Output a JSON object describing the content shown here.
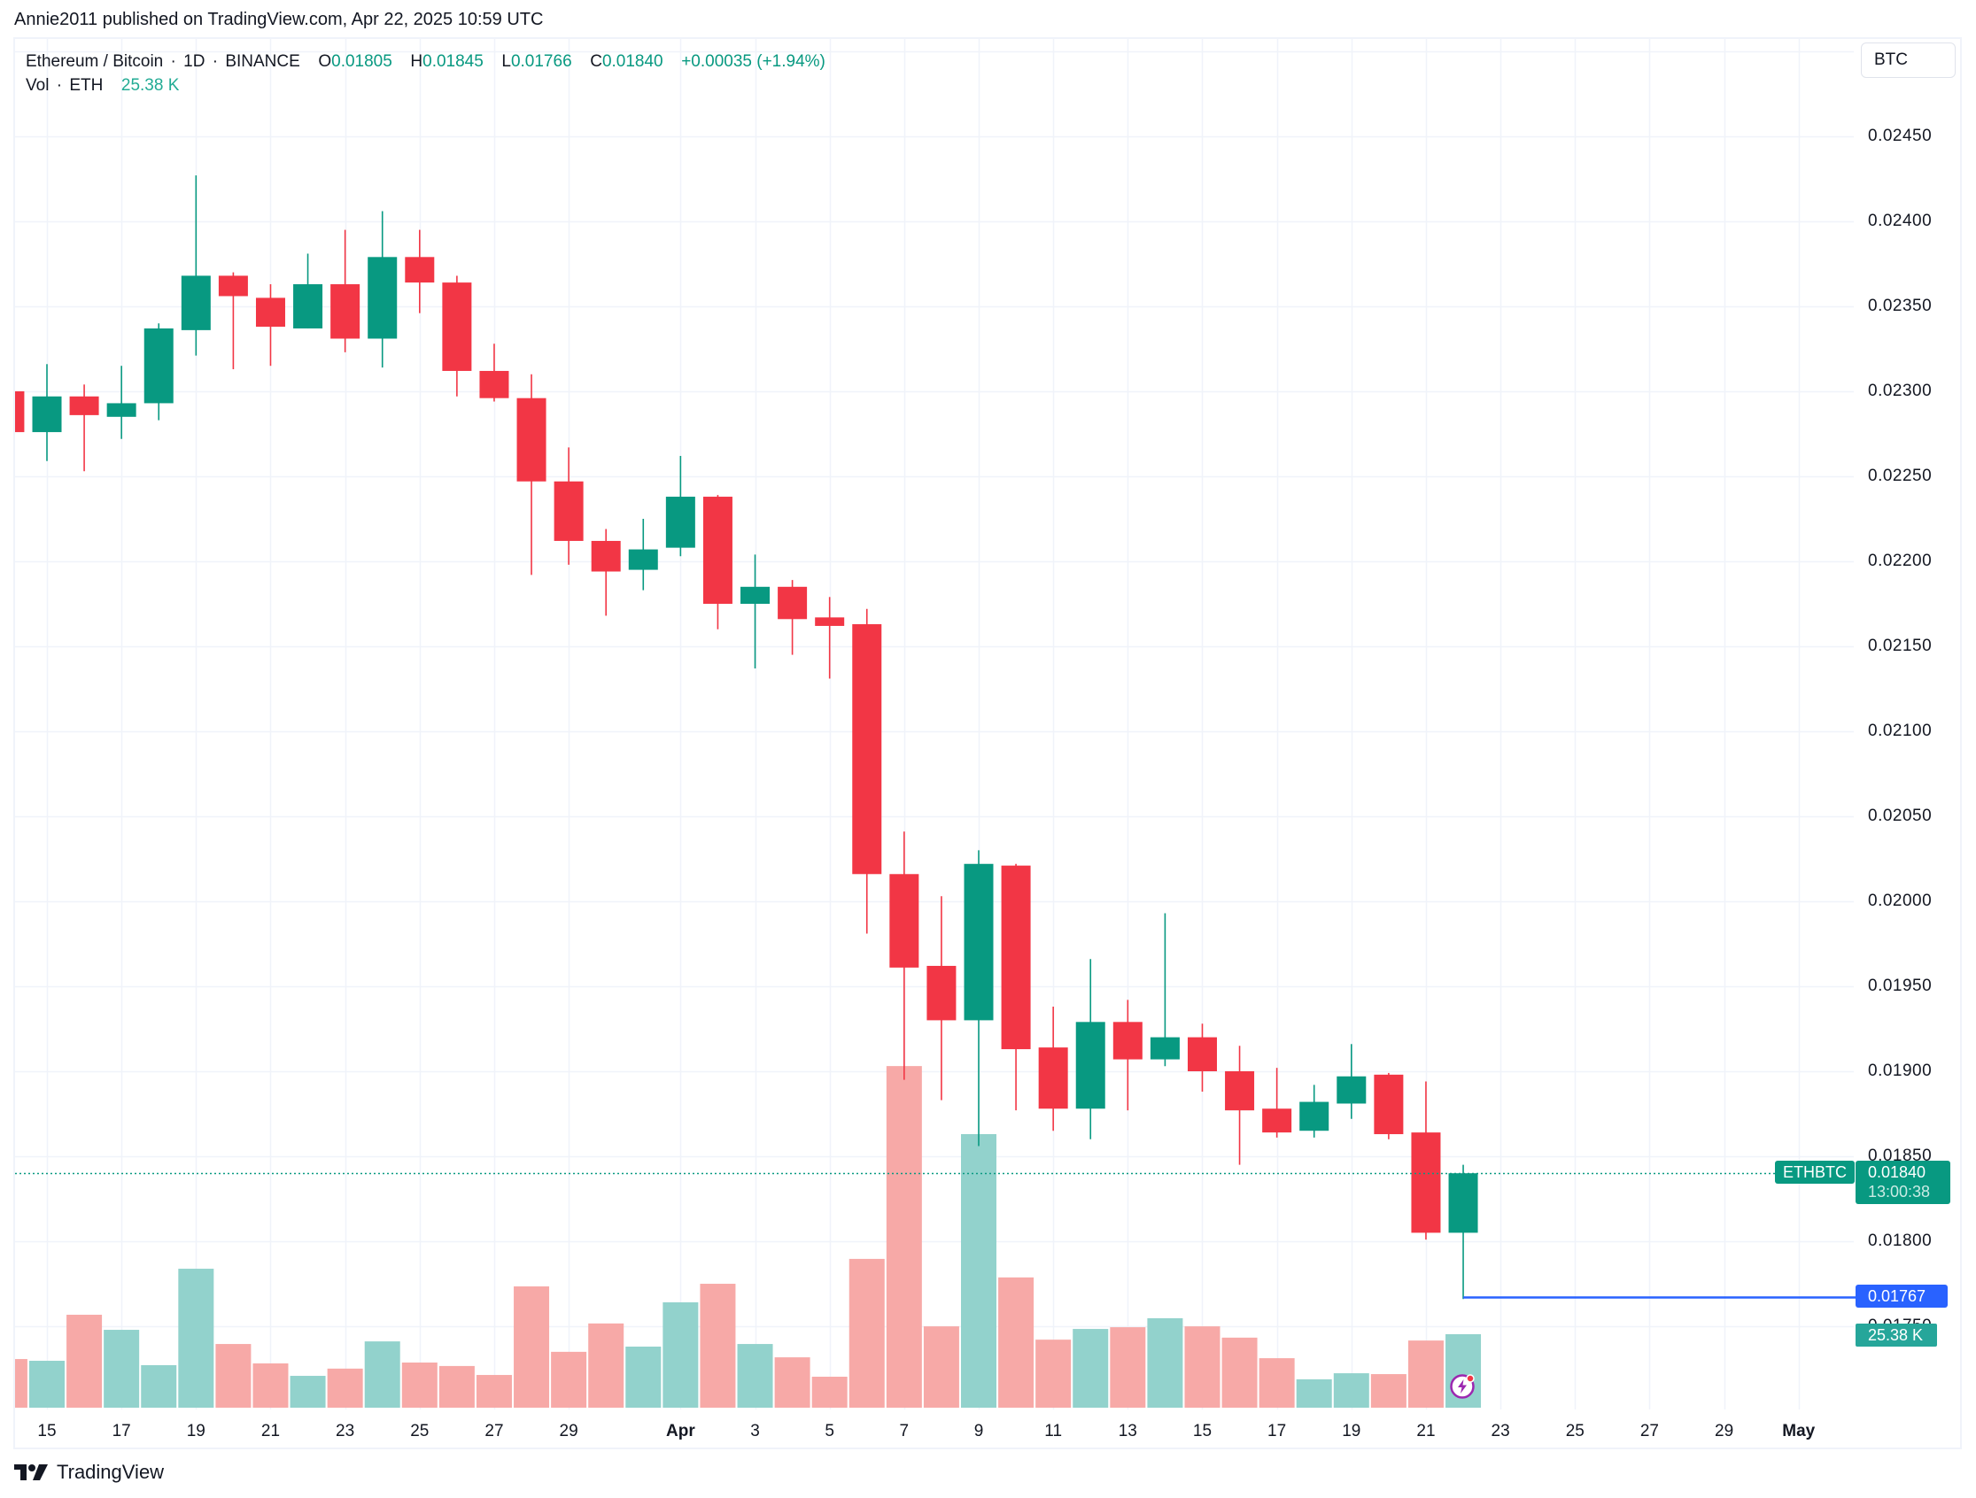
{
  "header": {
    "published_line": "Annie2011 published on TradingView.com, Apr 22, 2025 10:59 UTC"
  },
  "legend": {
    "symbol": "Ethereum / Bitcoin",
    "interval": "1D",
    "exchange": "BINANCE",
    "open_label": "O",
    "open": "0.01805",
    "high_label": "H",
    "high": "0.01845",
    "low_label": "L",
    "low": "0.01766",
    "close_label": "C",
    "close": "0.01840",
    "change": "+0.00035 (+1.94%)",
    "vol_label": "Vol",
    "vol_unit": "ETH",
    "vol_value": "25.38 K",
    "dot": "·"
  },
  "currency_button": "BTC",
  "price_axis": {
    "labels": [
      "0.02450",
      "0.02400",
      "0.02350",
      "0.02300",
      "0.02250",
      "0.02200",
      "0.02150",
      "0.02100",
      "0.02050",
      "0.02000",
      "0.01950",
      "0.01900",
      "0.01850",
      "0.01800",
      "0.01750"
    ]
  },
  "time_axis": {
    "labels": [
      {
        "text": "15",
        "day": 0
      },
      {
        "text": "17",
        "day": 2
      },
      {
        "text": "19",
        "day": 4
      },
      {
        "text": "21",
        "day": 6
      },
      {
        "text": "23",
        "day": 8
      },
      {
        "text": "25",
        "day": 10
      },
      {
        "text": "27",
        "day": 12
      },
      {
        "text": "29",
        "day": 14
      },
      {
        "text": "Apr",
        "day": 17,
        "bold": true
      },
      {
        "text": "3",
        "day": 19
      },
      {
        "text": "5",
        "day": 21
      },
      {
        "text": "7",
        "day": 23
      },
      {
        "text": "9",
        "day": 25
      },
      {
        "text": "11",
        "day": 27
      },
      {
        "text": "13",
        "day": 29
      },
      {
        "text": "15",
        "day": 31
      },
      {
        "text": "17",
        "day": 33
      },
      {
        "text": "19",
        "day": 35
      },
      {
        "text": "21",
        "day": 37
      },
      {
        "text": "23",
        "day": 39
      },
      {
        "text": "25",
        "day": 41
      },
      {
        "text": "27",
        "day": 43
      },
      {
        "text": "29",
        "day": 45
      },
      {
        "text": "May",
        "day": 47,
        "bold": true
      }
    ]
  },
  "markers": {
    "symbol_tag": "ETHBTC",
    "last_price": "0.01840",
    "countdown": "13:00:38",
    "low_line_price": "0.01767",
    "volume_tag": "25.38 K"
  },
  "footer": {
    "brand": "TradingView"
  },
  "colors": {
    "up": "#089981",
    "down": "#f23645",
    "vol_up": "#92d2cc",
    "vol_down": "#f7a9a7",
    "grid": "#f0f3fa",
    "low_line": "#2962ff",
    "text": "#131722"
  },
  "chart_data": {
    "type": "candlestick",
    "title": "Ethereum / Bitcoin · 1D · BINANCE",
    "xlabel": "",
    "ylabel": "BTC",
    "ylim": [
      0.0175,
      0.025
    ],
    "grid": true,
    "x": [
      "Mar 14",
      "Mar 15",
      "Mar 16",
      "Mar 17",
      "Mar 18",
      "Mar 19",
      "Mar 20",
      "Mar 21",
      "Mar 22",
      "Mar 23",
      "Mar 24",
      "Mar 25",
      "Mar 26",
      "Mar 27",
      "Mar 28",
      "Mar 29",
      "Mar 30",
      "Mar 31",
      "Apr 1",
      "Apr 2",
      "Apr 3",
      "Apr 4",
      "Apr 5",
      "Apr 6",
      "Apr 7",
      "Apr 8",
      "Apr 9",
      "Apr 10",
      "Apr 11",
      "Apr 12",
      "Apr 13",
      "Apr 14",
      "Apr 15",
      "Apr 16",
      "Apr 17",
      "Apr 18",
      "Apr 19",
      "Apr 20",
      "Apr 21",
      "Apr 22"
    ],
    "series": [
      {
        "name": "open",
        "values": [
          0.023,
          0.02276,
          0.02297,
          0.02285,
          0.02293,
          0.02336,
          0.02368,
          0.02355,
          0.02337,
          0.02363,
          0.02331,
          0.02379,
          0.02364,
          0.02312,
          0.02296,
          0.02247,
          0.02212,
          0.02195,
          0.02208,
          0.02238,
          0.02175,
          0.02185,
          0.02167,
          0.02163,
          0.02016,
          0.01962,
          0.0193,
          0.02021,
          0.01914,
          0.01878,
          0.01929,
          0.01907,
          0.0192,
          0.019,
          0.01878,
          0.01865,
          0.01881,
          0.01898,
          0.01864,
          0.01805
        ]
      },
      {
        "name": "high",
        "values": [
          0.02305,
          0.02316,
          0.02304,
          0.02315,
          0.0234,
          0.02427,
          0.0237,
          0.02363,
          0.02381,
          0.02395,
          0.02406,
          0.02395,
          0.02368,
          0.02328,
          0.0231,
          0.02267,
          0.02219,
          0.02225,
          0.02262,
          0.02239,
          0.02204,
          0.02189,
          0.02179,
          0.02172,
          0.02041,
          0.02003,
          0.0203,
          0.02022,
          0.01938,
          0.01966,
          0.01942,
          0.01993,
          0.01928,
          0.01915,
          0.01902,
          0.01892,
          0.01916,
          0.01899,
          0.01894,
          0.01845
        ]
      },
      {
        "name": "low",
        "values": [
          0.02276,
          0.02259,
          0.02253,
          0.02272,
          0.02283,
          0.02321,
          0.02313,
          0.02315,
          0.02337,
          0.02323,
          0.02314,
          0.02346,
          0.02297,
          0.02294,
          0.02192,
          0.02198,
          0.02168,
          0.02183,
          0.02203,
          0.0216,
          0.02137,
          0.02145,
          0.02131,
          0.01981,
          0.01895,
          0.01883,
          0.01856,
          0.01877,
          0.01865,
          0.0186,
          0.01877,
          0.01903,
          0.01888,
          0.01845,
          0.01861,
          0.01861,
          0.01872,
          0.0186,
          0.01801,
          0.01766
        ]
      },
      {
        "name": "close",
        "values": [
          0.02276,
          0.02297,
          0.02286,
          0.02293,
          0.02337,
          0.02368,
          0.02356,
          0.02338,
          0.02363,
          0.02331,
          0.02379,
          0.02364,
          0.02312,
          0.02296,
          0.02247,
          0.02212,
          0.02194,
          0.02207,
          0.02238,
          0.02175,
          0.02185,
          0.02166,
          0.02162,
          0.02016,
          0.01961,
          0.0193,
          0.02022,
          0.01913,
          0.01878,
          0.01929,
          0.01907,
          0.0192,
          0.019,
          0.01877,
          0.01864,
          0.01882,
          0.01897,
          0.01863,
          0.01805,
          0.0184
        ]
      },
      {
        "name": "volume_k",
        "values": [
          16.8,
          16.2,
          32.1,
          26.9,
          14.7,
          48.0,
          22.0,
          15.3,
          11.0,
          13.5,
          22.9,
          15.6,
          14.4,
          11.3,
          41.9,
          19.3,
          29.1,
          21.1,
          36.4,
          42.8,
          22.0,
          17.4,
          10.7,
          51.4,
          118.0,
          28.1,
          94.5,
          45.0,
          23.5,
          27.2,
          27.8,
          30.9,
          28.1,
          24.2,
          17.1,
          9.8,
          11.9,
          11.6,
          23.2,
          25.38
        ]
      }
    ],
    "annotations": [
      {
        "type": "last_price",
        "label": "ETHBTC",
        "value": 0.0184,
        "countdown": "13:00:38"
      },
      {
        "type": "horizontal_line",
        "value": 0.01767,
        "from": "Apr 22"
      },
      {
        "type": "volume_last",
        "value": "25.38 K"
      }
    ]
  }
}
